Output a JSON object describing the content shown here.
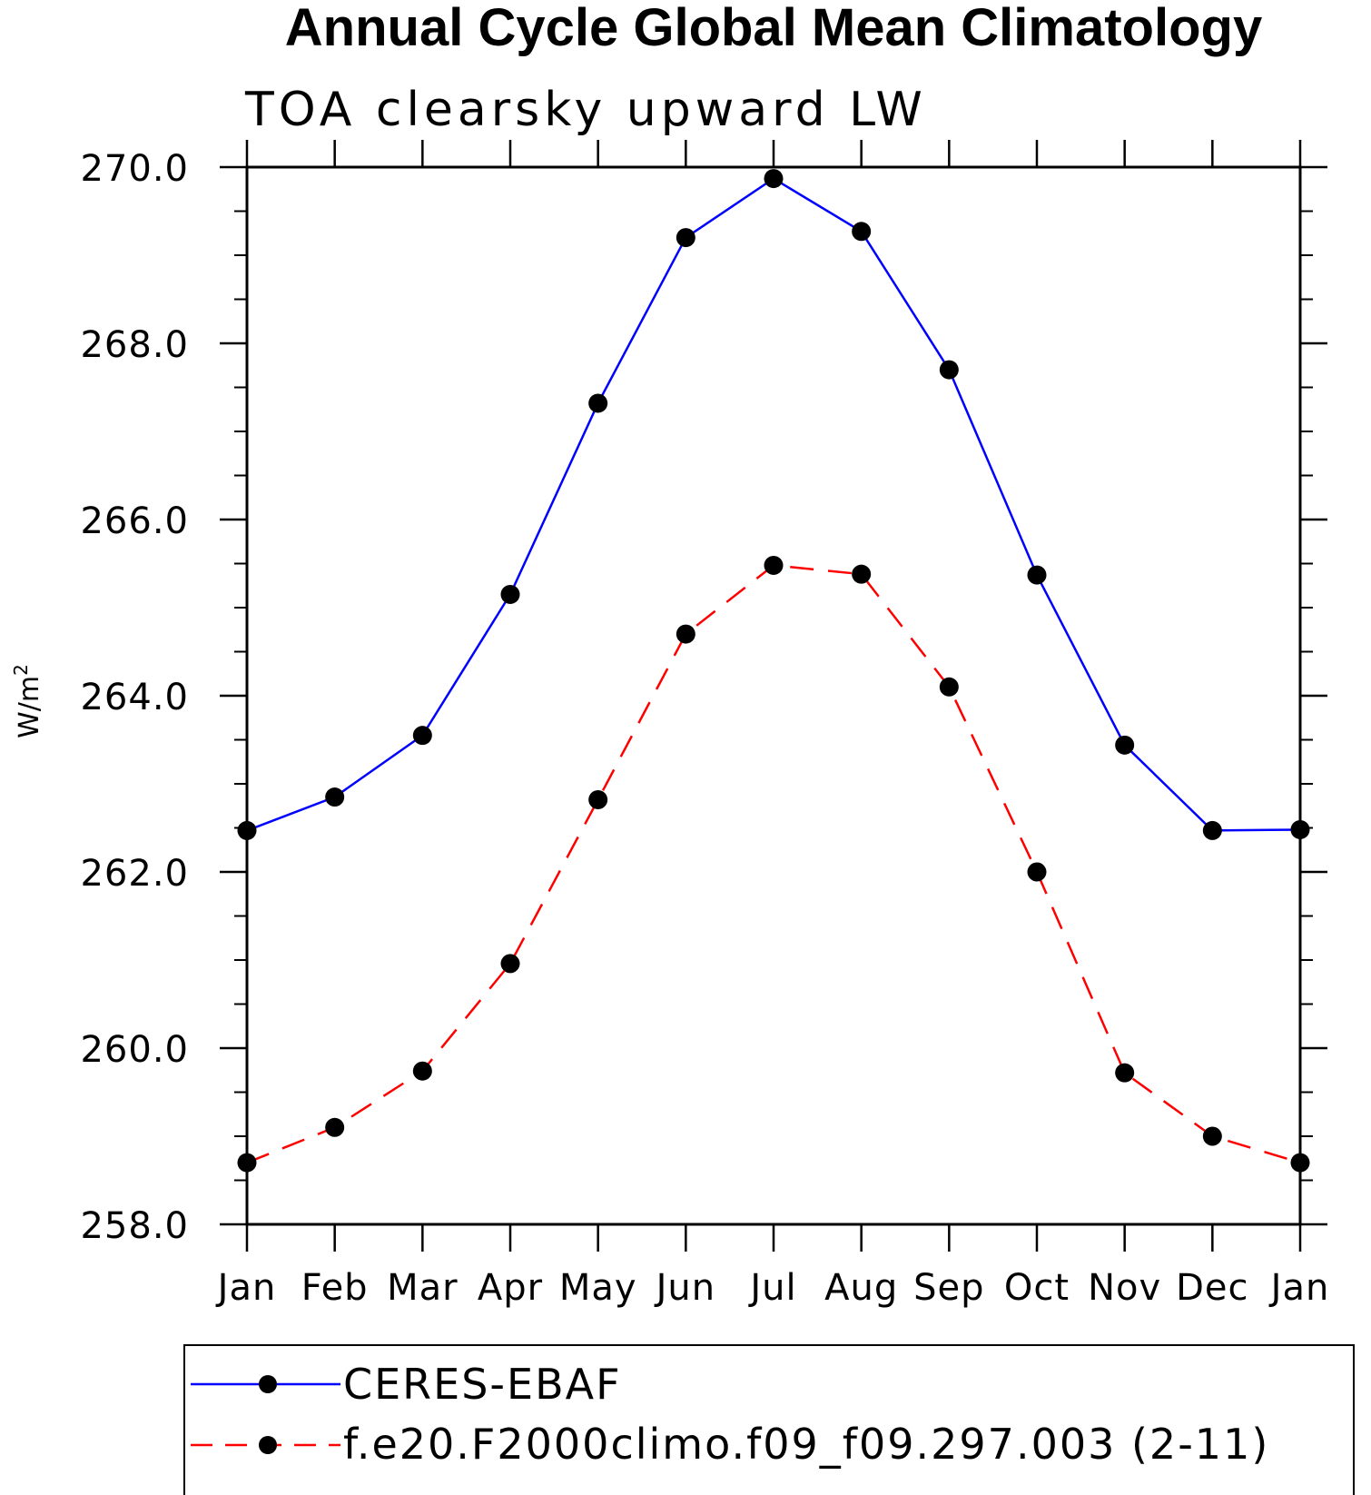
{
  "chart_data": {
    "type": "line",
    "title": "Annual Cycle Global Mean Climatology",
    "subtitle": "TOA clearsky upward LW",
    "ylabel": "W/m",
    "ylabel_superscript": "2",
    "ylim": [
      258.0,
      270.0
    ],
    "y_ticks": [
      "258.0",
      "260.0",
      "262.0",
      "264.0",
      "266.0",
      "268.0",
      "270.0"
    ],
    "categories": [
      "Jan",
      "Feb",
      "Mar",
      "Apr",
      "May",
      "Jun",
      "Jul",
      "Aug",
      "Sep",
      "Oct",
      "Nov",
      "Dec",
      "Jan"
    ],
    "grid": false,
    "legend_position": "bottom",
    "series": [
      {
        "name": "CERES-EBAF",
        "color": "#0000ff",
        "dash": "solid",
        "marker": "filled-circle",
        "values": [
          262.47,
          262.85,
          263.55,
          265.15,
          267.32,
          269.2,
          269.87,
          269.27,
          267.7,
          265.37,
          263.44,
          262.47,
          262.48
        ]
      },
      {
        "name": "f.e20.F2000climo.f09_f09.297.003 (2-11)",
        "color": "#ff0000",
        "dash": "dashed",
        "marker": "filled-circle",
        "values": [
          258.7,
          259.1,
          259.74,
          260.96,
          262.82,
          264.7,
          265.48,
          265.38,
          264.1,
          262.0,
          259.72,
          259.0,
          258.7
        ]
      }
    ]
  }
}
